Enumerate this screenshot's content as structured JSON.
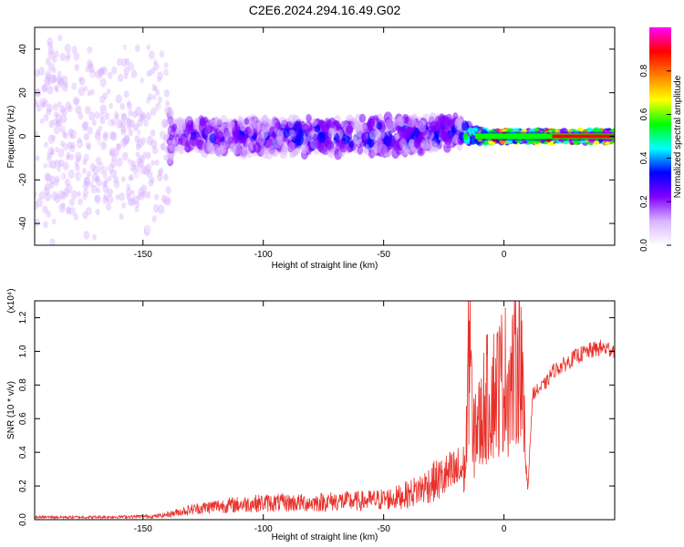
{
  "title": "C2E6.2024.294.16.49.G02",
  "chart_data": [
    {
      "type": "heatmap",
      "panel": "spectrogram",
      "xlabel": "Height of straight line (km)",
      "ylabel": "Frequency (Hz)",
      "xlim": [
        -195,
        46
      ],
      "ylim": [
        -50,
        50
      ],
      "x_ticks": [
        -150,
        -100,
        -50,
        0
      ],
      "x_tick_labels": [
        "-150",
        "-100",
        "-50",
        "0"
      ],
      "y_ticks": [
        -40,
        -20,
        0,
        20,
        40
      ],
      "y_tick_labels": [
        "-40",
        "-20",
        "0",
        "20",
        "40"
      ],
      "colorbar": {
        "label": "Normalized spectral amplitude",
        "range": [
          0.0,
          1.0
        ],
        "ticks": [
          0.0,
          0.2,
          0.4,
          0.6,
          0.8
        ],
        "tick_labels": [
          "0.0",
          "0.2",
          "0.4",
          "0.6",
          "0.8"
        ],
        "colormap": [
          "#ffffff",
          "#d9b3ff",
          "#8000ff",
          "#0000ff",
          "#00ffff",
          "#00ff00",
          "#ffff00",
          "#ff8000",
          "#ff0000",
          "#ff00ff"
        ]
      },
      "band_profile": [
        {
          "x": -195,
          "center_hz": 0,
          "half_width_hz": 50,
          "amplitude": 0.12
        },
        {
          "x": -140,
          "center_hz": 0,
          "half_width_hz": 50,
          "amplitude": 0.12
        },
        {
          "x": -138,
          "center_hz": 0,
          "half_width_hz": 8,
          "amplitude": 0.25
        },
        {
          "x": -100,
          "center_hz": 0,
          "half_width_hz": 9,
          "amplitude": 0.28
        },
        {
          "x": -50,
          "center_hz": 0,
          "half_width_hz": 9,
          "amplitude": 0.3
        },
        {
          "x": -20,
          "center_hz": 2,
          "half_width_hz": 8,
          "amplitude": 0.3
        },
        {
          "x": -12,
          "center_hz": 0,
          "half_width_hz": 3,
          "amplitude": 0.6
        },
        {
          "x": 0,
          "center_hz": 0,
          "half_width_hz": 2,
          "amplitude": 0.9
        },
        {
          "x": 46,
          "center_hz": 0,
          "half_width_hz": 2,
          "amplitude": 0.95
        }
      ]
    },
    {
      "type": "line",
      "panel": "snr",
      "xlabel": "Height of straight line (km)",
      "ylabel": "SNR (10 * v/v)",
      "y_multiplier": "(x10⁴)",
      "xlim": [
        -195,
        46
      ],
      "ylim": [
        0,
        1.3
      ],
      "x_ticks": [
        -150,
        -100,
        -50,
        0
      ],
      "x_tick_labels": [
        "-150",
        "-100",
        "-50",
        "0"
      ],
      "y_ticks": [
        0.0,
        0.2,
        0.4,
        0.6,
        0.8,
        1.0,
        1.2
      ],
      "y_tick_labels": [
        "0.0",
        "0.2",
        "0.4",
        "0.6",
        "0.8",
        "1.0",
        "1.2"
      ],
      "series": [
        {
          "color": "#e8302a",
          "x": [
            -195,
            -170,
            -145,
            -140,
            -130,
            -120,
            -110,
            -100,
            -90,
            -80,
            -70,
            -60,
            -50,
            -45,
            -40,
            -35,
            -30,
            -25,
            -20,
            -16,
            -14,
            -13,
            -12,
            -10,
            -8,
            -5,
            -2,
            0,
            3,
            5,
            7,
            8,
            9,
            10,
            11,
            12,
            15,
            18,
            20,
            25,
            30,
            35,
            40,
            46
          ],
          "y": [
            0.015,
            0.015,
            0.02,
            0.03,
            0.06,
            0.08,
            0.09,
            0.1,
            0.1,
            0.1,
            0.11,
            0.11,
            0.12,
            0.13,
            0.15,
            0.18,
            0.22,
            0.25,
            0.28,
            0.3,
            1.25,
            0.35,
            0.6,
            0.55,
            0.7,
            0.75,
            0.8,
            0.85,
            0.8,
            0.9,
            1.1,
            0.6,
            0.35,
            0.2,
            0.5,
            0.75,
            0.78,
            0.82,
            0.88,
            0.92,
            0.97,
            1.0,
            1.02,
            1.01
          ]
        }
      ]
    }
  ]
}
